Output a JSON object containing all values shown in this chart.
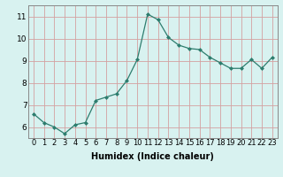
{
  "x": [
    0,
    1,
    2,
    3,
    4,
    5,
    6,
    7,
    8,
    9,
    10,
    11,
    12,
    13,
    14,
    15,
    16,
    17,
    18,
    19,
    20,
    21,
    22,
    23
  ],
  "y": [
    6.6,
    6.2,
    6.0,
    5.7,
    6.1,
    6.2,
    7.2,
    7.35,
    7.5,
    8.1,
    9.05,
    11.1,
    10.85,
    10.05,
    9.7,
    9.55,
    9.5,
    9.15,
    8.9,
    8.65,
    8.65,
    9.05,
    8.65,
    9.15
  ],
  "xlabel": "Humidex (Indice chaleur)",
  "ylim": [
    5.5,
    11.5
  ],
  "xlim": [
    -0.5,
    23.5
  ],
  "yticks": [
    6,
    7,
    8,
    9,
    10,
    11
  ],
  "xticks": [
    0,
    1,
    2,
    3,
    4,
    5,
    6,
    7,
    8,
    9,
    10,
    11,
    12,
    13,
    14,
    15,
    16,
    17,
    18,
    19,
    20,
    21,
    22,
    23
  ],
  "line_color": "#2d7d6e",
  "marker": "D",
  "marker_size": 2.0,
  "bg_color": "#d8f2f0",
  "grid_color": "#d4a0a0",
  "axis_color": "#888888",
  "tick_fontsize": 6.0,
  "xlabel_fontsize": 7.0
}
